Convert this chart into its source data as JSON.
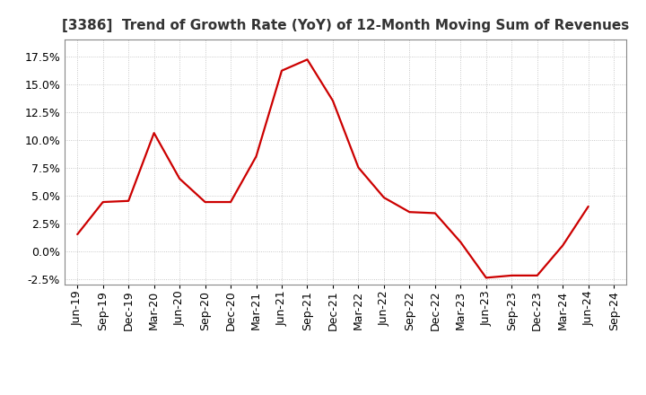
{
  "title": "[3386]  Trend of Growth Rate (YoY) of 12-Month Moving Sum of Revenues",
  "line_color": "#CC0000",
  "background_color": "#FFFFFF",
  "plot_bg_color": "#FFFFFF",
  "grid_color": "#BBBBBB",
  "xlabel": "",
  "ylabel": "",
  "ylim": [
    -0.03,
    0.19
  ],
  "yticks": [
    -0.025,
    0.0,
    0.025,
    0.05,
    0.075,
    0.1,
    0.125,
    0.15,
    0.175
  ],
  "x_labels": [
    "Jun-19",
    "Sep-19",
    "Dec-19",
    "Mar-20",
    "Jun-20",
    "Sep-20",
    "Dec-20",
    "Mar-21",
    "Jun-21",
    "Sep-21",
    "Dec-21",
    "Mar-22",
    "Jun-22",
    "Sep-22",
    "Dec-22",
    "Mar-23",
    "Jun-23",
    "Sep-23",
    "Dec-23",
    "Mar-24",
    "Jun-24",
    "Sep-24"
  ],
  "data": [
    [
      "Jun-19",
      0.015
    ],
    [
      "Sep-19",
      0.044
    ],
    [
      "Dec-19",
      0.045
    ],
    [
      "Mar-20",
      0.106
    ],
    [
      "Jun-20",
      0.065
    ],
    [
      "Sep-20",
      0.044
    ],
    [
      "Dec-20",
      0.044
    ],
    [
      "Mar-21",
      0.085
    ],
    [
      "Jun-21",
      0.162
    ],
    [
      "Sep-21",
      0.172
    ],
    [
      "Dec-21",
      0.135
    ],
    [
      "Mar-22",
      0.075
    ],
    [
      "Jun-22",
      0.048
    ],
    [
      "Sep-22",
      0.035
    ],
    [
      "Dec-22",
      0.034
    ],
    [
      "Mar-23",
      0.008
    ],
    [
      "Jun-23",
      -0.024
    ],
    [
      "Sep-23",
      -0.022
    ],
    [
      "Dec-23",
      -0.022
    ],
    [
      "Mar-24",
      0.005
    ],
    [
      "Jun-24",
      0.04
    ],
    [
      "Sep-24",
      null
    ]
  ],
  "title_fontsize": 11,
  "tick_fontsize": 9,
  "line_width": 1.6
}
